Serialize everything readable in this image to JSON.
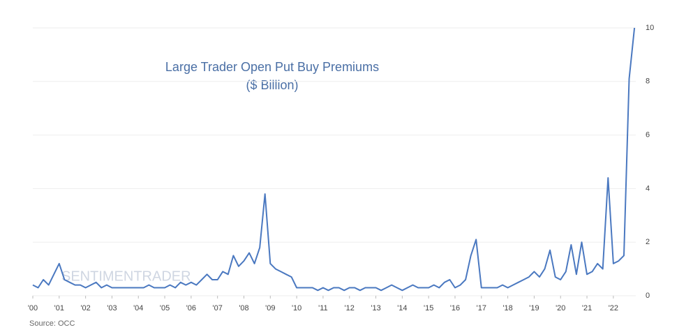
{
  "chart_data": {
    "type": "line",
    "title": "Large Trader Open Put Buy Premiums",
    "subtitle": "($ Billion)",
    "watermark": "SENTIMENTRADER",
    "source": "Source: OCC",
    "x": [
      2000.0,
      2000.2,
      2000.4,
      2000.6,
      2000.8,
      2001.0,
      2001.2,
      2001.4,
      2001.6,
      2001.8,
      2002.0,
      2002.2,
      2002.4,
      2002.6,
      2002.8,
      2003.0,
      2003.2,
      2003.4,
      2003.6,
      2003.8,
      2004.0,
      2004.2,
      2004.4,
      2004.6,
      2004.8,
      2005.0,
      2005.2,
      2005.4,
      2005.6,
      2005.8,
      2006.0,
      2006.2,
      2006.4,
      2006.6,
      2006.8,
      2007.0,
      2007.2,
      2007.4,
      2007.6,
      2007.8,
      2008.0,
      2008.2,
      2008.4,
      2008.6,
      2008.8,
      2009.0,
      2009.2,
      2009.4,
      2009.6,
      2009.8,
      2010.0,
      2010.2,
      2010.4,
      2010.6,
      2010.8,
      2011.0,
      2011.2,
      2011.4,
      2011.6,
      2011.8,
      2012.0,
      2012.2,
      2012.4,
      2012.6,
      2012.8,
      2013.0,
      2013.2,
      2013.4,
      2013.6,
      2013.8,
      2014.0,
      2014.2,
      2014.4,
      2014.6,
      2014.8,
      2015.0,
      2015.2,
      2015.4,
      2015.6,
      2015.8,
      2016.0,
      2016.2,
      2016.4,
      2016.6,
      2016.8,
      2017.0,
      2017.2,
      2017.4,
      2017.6,
      2017.8,
      2018.0,
      2018.2,
      2018.4,
      2018.6,
      2018.8,
      2019.0,
      2019.2,
      2019.4,
      2019.6,
      2019.8,
      2020.0,
      2020.2,
      2020.4,
      2020.6,
      2020.8,
      2021.0,
      2021.2,
      2021.4,
      2021.6,
      2021.8,
      2022.0,
      2022.2,
      2022.4,
      2022.6,
      2022.8
    ],
    "series": [
      {
        "color": "#4a78c0",
        "values": [
          0.4,
          0.3,
          0.6,
          0.4,
          0.8,
          1.2,
          0.6,
          0.5,
          0.4,
          0.4,
          0.3,
          0.4,
          0.5,
          0.3,
          0.4,
          0.3,
          0.3,
          0.3,
          0.3,
          0.3,
          0.3,
          0.3,
          0.4,
          0.3,
          0.3,
          0.3,
          0.4,
          0.3,
          0.5,
          0.4,
          0.5,
          0.4,
          0.6,
          0.8,
          0.6,
          0.6,
          0.9,
          0.8,
          1.5,
          1.1,
          1.3,
          1.6,
          1.2,
          1.8,
          3.8,
          1.2,
          1.0,
          0.9,
          0.8,
          0.7,
          0.3,
          0.3,
          0.3,
          0.3,
          0.2,
          0.3,
          0.2,
          0.3,
          0.3,
          0.2,
          0.3,
          0.3,
          0.2,
          0.3,
          0.3,
          0.3,
          0.2,
          0.3,
          0.4,
          0.3,
          0.2,
          0.3,
          0.4,
          0.3,
          0.3,
          0.3,
          0.4,
          0.3,
          0.5,
          0.6,
          0.3,
          0.4,
          0.6,
          1.5,
          2.1,
          0.3,
          0.3,
          0.3,
          0.3,
          0.4,
          0.3,
          0.4,
          0.5,
          0.6,
          0.7,
          0.9,
          0.7,
          1.0,
          1.7,
          0.7,
          0.6,
          0.9,
          1.9,
          0.8,
          2.0,
          0.8,
          0.9,
          1.2,
          1.0,
          4.4,
          1.2,
          1.3,
          1.5,
          8.1,
          10.0
        ]
      }
    ],
    "xlim": [
      2000,
      2022.85
    ],
    "xticks": [
      {
        "value": 2000,
        "label": "'00"
      },
      {
        "value": 2001,
        "label": "'01"
      },
      {
        "value": 2002,
        "label": "'02"
      },
      {
        "value": 2003,
        "label": "'03"
      },
      {
        "value": 2004,
        "label": "'04"
      },
      {
        "value": 2005,
        "label": "'05"
      },
      {
        "value": 2006,
        "label": "'06"
      },
      {
        "value": 2007,
        "label": "'07"
      },
      {
        "value": 2008,
        "label": "'08"
      },
      {
        "value": 2009,
        "label": "'09"
      },
      {
        "value": 2010,
        "label": "'10"
      },
      {
        "value": 2011,
        "label": "'11"
      },
      {
        "value": 2012,
        "label": "'12"
      },
      {
        "value": 2013,
        "label": "'13"
      },
      {
        "value": 2014,
        "label": "'14"
      },
      {
        "value": 2015,
        "label": "'15"
      },
      {
        "value": 2016,
        "label": "'16"
      },
      {
        "value": 2017,
        "label": "'17"
      },
      {
        "value": 2018,
        "label": "'18"
      },
      {
        "value": 2019,
        "label": "'19"
      },
      {
        "value": 2020,
        "label": "'20"
      },
      {
        "value": 2021,
        "label": "'21"
      },
      {
        "value": 2022,
        "label": "'22"
      }
    ],
    "ylim": [
      0,
      10
    ],
    "yticks": [
      0,
      2,
      4,
      6,
      8,
      10
    ],
    "grid": true
  }
}
